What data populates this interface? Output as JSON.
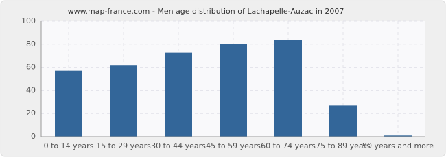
{
  "chart_data": {
    "type": "bar",
    "title": "www.map-france.com - Men age distribution of Lachapelle-Auzac in 2007",
    "categories": [
      "0 to 14 years",
      "15 to 29 years",
      "30 to 44 years",
      "45 to 59 years",
      "60 to 74 years",
      "75 to 89 years",
      "90 years and more"
    ],
    "values": [
      57,
      62,
      73,
      80,
      84,
      27,
      1
    ],
    "color": "#336699",
    "ylim": [
      0,
      100
    ],
    "yticks": [
      0,
      20,
      40,
      60,
      80,
      100
    ],
    "grid": true
  }
}
